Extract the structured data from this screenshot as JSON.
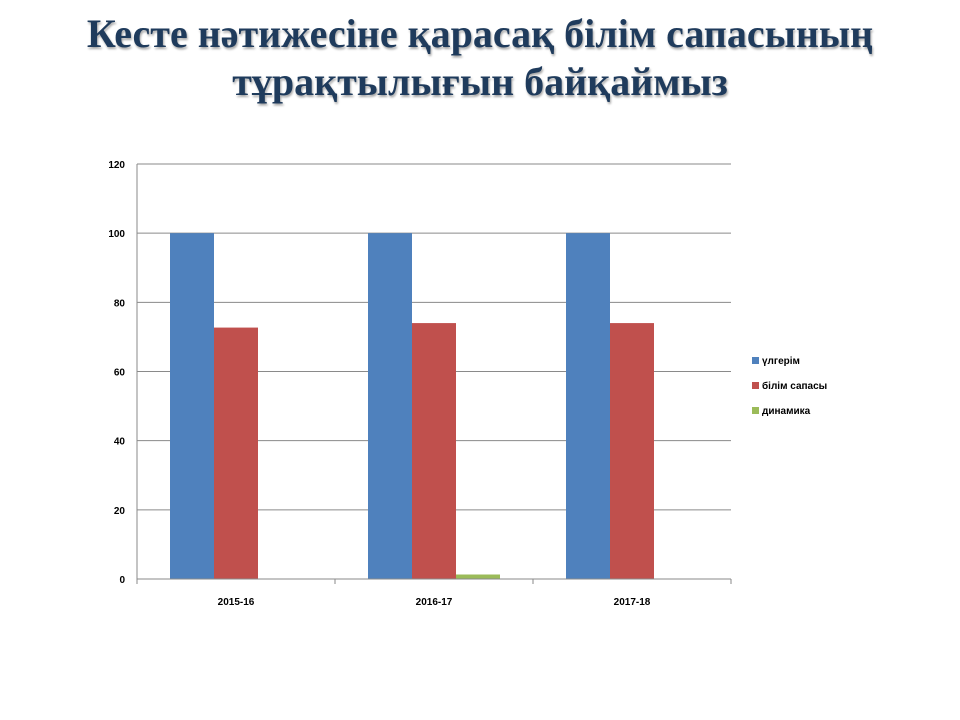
{
  "slide": {
    "title_line1": "Кесте нәтижесіне қарасақ білім сапасының",
    "title_line2": "тұрақтылығын байқаймыз"
  },
  "chart_data": {
    "type": "bar",
    "categories": [
      "2015-16",
      "2016-17",
      "2017-18"
    ],
    "series": [
      {
        "name": "үлгерім",
        "values": [
          100,
          100,
          100
        ],
        "color": "#4f81bd"
      },
      {
        "name": "білім сапасы",
        "values": [
          72.7,
          74,
          74
        ],
        "color": "#c0504d"
      },
      {
        "name": "динамика",
        "values": [
          0,
          1.3,
          0
        ],
        "color": "#9bbb59"
      }
    ],
    "ylim": [
      0,
      120
    ],
    "yticks": [
      0,
      20,
      40,
      60,
      80,
      100,
      120
    ],
    "grid": true,
    "legend_position": "right",
    "title": "",
    "xlabel": "",
    "ylabel": ""
  }
}
